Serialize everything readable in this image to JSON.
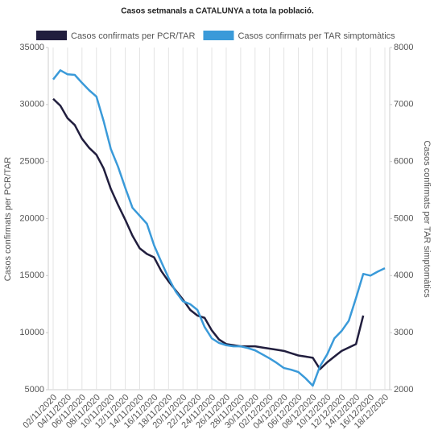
{
  "chart_data": {
    "type": "line",
    "title": "Casos setmanals a CATALUNYA a tota la població.",
    "ylabel": "Casos confirmats per PCR/TAR",
    "y2label": "Casos confirmats per TAR simptomàtics",
    "categories": [
      "02/11/2020",
      null,
      "04/11/2020",
      null,
      "06/11/2020",
      null,
      "08/11/2020",
      null,
      "10/11/2020",
      null,
      "12/11/2020",
      null,
      "14/11/2020",
      null,
      "16/11/2020",
      null,
      "18/11/2020",
      null,
      "20/11/2020",
      null,
      "22/11/2020",
      null,
      "24/11/2020",
      null,
      "26/11/2020",
      null,
      "28/11/2020",
      null,
      "30/11/2020",
      null,
      "02/12/2020",
      null,
      "04/12/2020",
      null,
      "06/12/2020",
      null,
      "08/12/2020",
      null,
      "10/12/2020",
      null,
      "12/12/2020",
      null,
      "14/12/2020",
      null,
      "16/12/2020",
      null,
      "18/12/2020"
    ],
    "series": [
      {
        "name": "Casos confirmats per PCR/TAR",
        "color": "#211e3e",
        "axis": "y",
        "values": [
          30500,
          29900,
          28800,
          28200,
          27000,
          26200,
          25600,
          24400,
          22600,
          21200,
          19900,
          18500,
          17400,
          16900,
          16600,
          15400,
          14500,
          13700,
          12900,
          12000,
          11500,
          11300,
          10200,
          9400,
          9000,
          8900,
          8800,
          8800,
          8800,
          8700,
          8600,
          8500,
          8400,
          8200,
          8000,
          7900,
          7800,
          6800,
          7400,
          7900,
          8400,
          8700,
          9000,
          11500,
          null,
          null,
          null
        ]
      },
      {
        "name": "Casos confirmats per TAR simptomàtics",
        "color": "#3a9ad9",
        "axis": "y2",
        "values": [
          7440,
          7600,
          7530,
          7520,
          7380,
          7250,
          7140,
          6710,
          6220,
          5910,
          5540,
          5190,
          5050,
          4910,
          4530,
          4240,
          3960,
          3720,
          3550,
          3500,
          3400,
          3100,
          2900,
          2820,
          2780,
          2760,
          2760,
          2730,
          2690,
          2620,
          2550,
          2470,
          2380,
          2350,
          2310,
          2200,
          2070,
          2410,
          2620,
          2900,
          3030,
          3210,
          3610,
          4030,
          4000,
          4070,
          4130
        ]
      }
    ],
    "ylim": [
      5000,
      35000
    ],
    "yticks": [
      5000,
      10000,
      15000,
      20000,
      25000,
      30000,
      35000
    ],
    "y2lim": [
      2000,
      8000
    ],
    "y2ticks": [
      2000,
      3000,
      4000,
      5000,
      6000,
      7000,
      8000
    ],
    "grid": true
  }
}
